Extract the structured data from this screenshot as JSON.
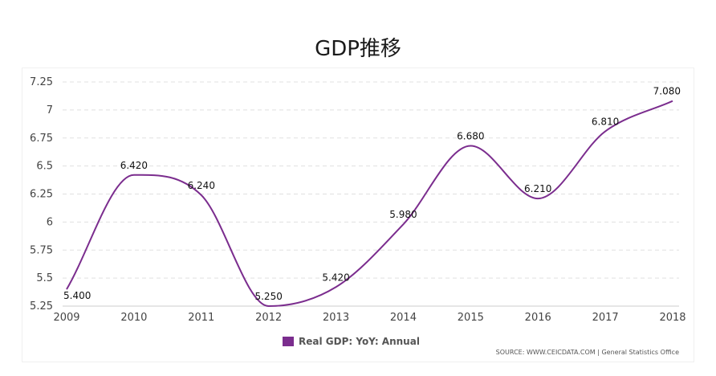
{
  "page": {
    "title": "GDP推移"
  },
  "chart_data": {
    "type": "line",
    "categories": [
      "2009",
      "2010",
      "2011",
      "2012",
      "2013",
      "2014",
      "2015",
      "2016",
      "2017",
      "2018"
    ],
    "series": [
      {
        "name": "Real GDP: YoY: Annual",
        "values": [
          5.4,
          6.42,
          6.24,
          5.25,
          5.42,
          5.98,
          6.68,
          6.21,
          6.81,
          7.08
        ],
        "labels": [
          "5.400",
          "6.420",
          "6.240",
          "5.250",
          "5.420",
          "5.980",
          "6.680",
          "6.210",
          "6.810",
          "7.080"
        ],
        "color": "#7b2d8e"
      }
    ],
    "ylim": [
      5.25,
      7.25
    ],
    "yticks": [
      5.25,
      5.5,
      5.75,
      6,
      6.25,
      6.5,
      6.75,
      7,
      7.25
    ],
    "ytick_labels": [
      "5.25",
      "5.5",
      "5.75",
      "6",
      "6.25",
      "6.5",
      "6.75",
      "7",
      "7.25"
    ],
    "grid": true,
    "legend_position": "bottom-center",
    "source": "SOURCE: WWW.CEICDATA.COM | General Statistics Office"
  }
}
